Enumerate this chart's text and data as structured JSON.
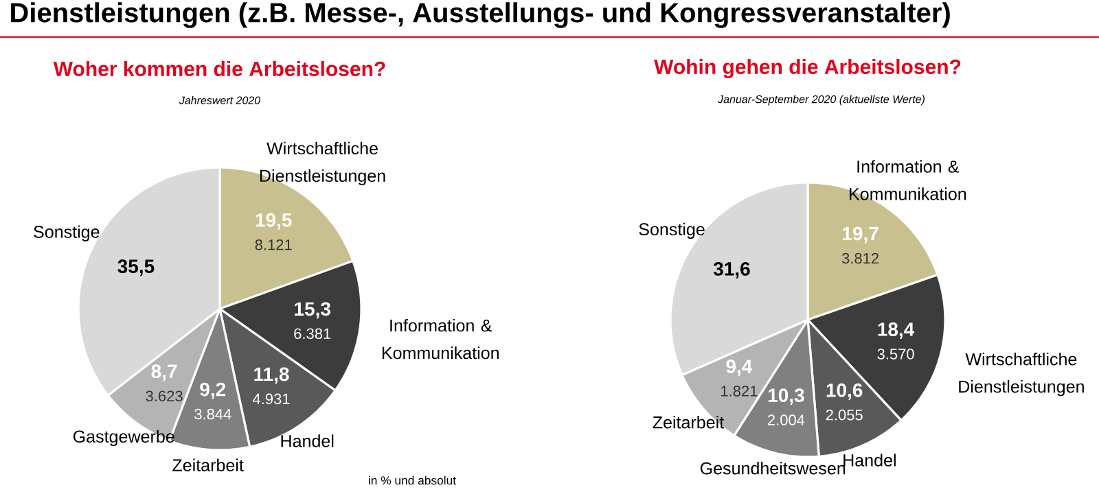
{
  "chart_data": [
    {
      "type": "pie",
      "title": "Woher kommen die Arbeitslosen?",
      "subtitle": "Jahreswert 2020",
      "categories": [
        "Wirtschaftliche Dienstleistungen",
        "Information & Kommunikation",
        "Handel",
        "Zeitarbeit",
        "Gastgewerbe",
        "Sonstige"
      ],
      "values": [
        19.5,
        15.3,
        11.8,
        9.2,
        8.7,
        35.5
      ],
      "colors": [
        "#c8c08e",
        "#3c3c3c",
        "#595959",
        "#808080",
        "#b4b4b4",
        "#d9d9d9"
      ],
      "value_labels": [
        "19,5",
        "15,3",
        "11,8",
        "9,2",
        "8,7",
        "35,5"
      ],
      "annotations": [
        "Dienstleistungen (z.B. Messe-, Ausstellungs- und Kongressveranstalter)",
        {
          "text": "8.121",
          "x": "Wirtschaftliche Dienstleistungen"
        },
        {
          "text": "6.381",
          "x": "Information & Kommunikation"
        },
        {
          "text": "4.931",
          "x": "Handel"
        },
        {
          "text": "3.844",
          "x": "Zeitarbeit"
        },
        {
          "text": "3.623",
          "x": "Gastgewerbe"
        },
        "in % und absolut"
      ]
    },
    {
      "type": "pie",
      "title": "Wohin gehen die Arbeitslosen?",
      "subtitle": "Januar-September 2020 (aktuellste Werte)",
      "categories": [
        "Information & Kommunikation",
        "Wirtschaftliche Dienstleistungen",
        "Handel",
        "Gesundheitswesen",
        "Zeitarbeit",
        "Sonstige"
      ],
      "values": [
        19.7,
        18.4,
        10.6,
        10.3,
        9.4,
        31.6
      ],
      "colors": [
        "#c8c08e",
        "#3c3c3c",
        "#595959",
        "#808080",
        "#b4b4b4",
        "#d9d9d9"
      ],
      "value_labels": [
        "19,7",
        "18,4",
        "10,6",
        "10,3",
        "9,4",
        "31,6"
      ],
      "annotations": [
        {
          "text": "3.812",
          "x": "Information & Kommunikation"
        },
        {
          "text": "3.570",
          "x": "Wirtschaftliche Dienstleistungen"
        },
        {
          "text": "2.055",
          "x": "Handel"
        },
        {
          "text": "2.004",
          "x": "Gesundheitswesen"
        },
        {
          "text": "1.821",
          "x": "Zeitarbeit"
        }
      ]
    }
  ]
}
